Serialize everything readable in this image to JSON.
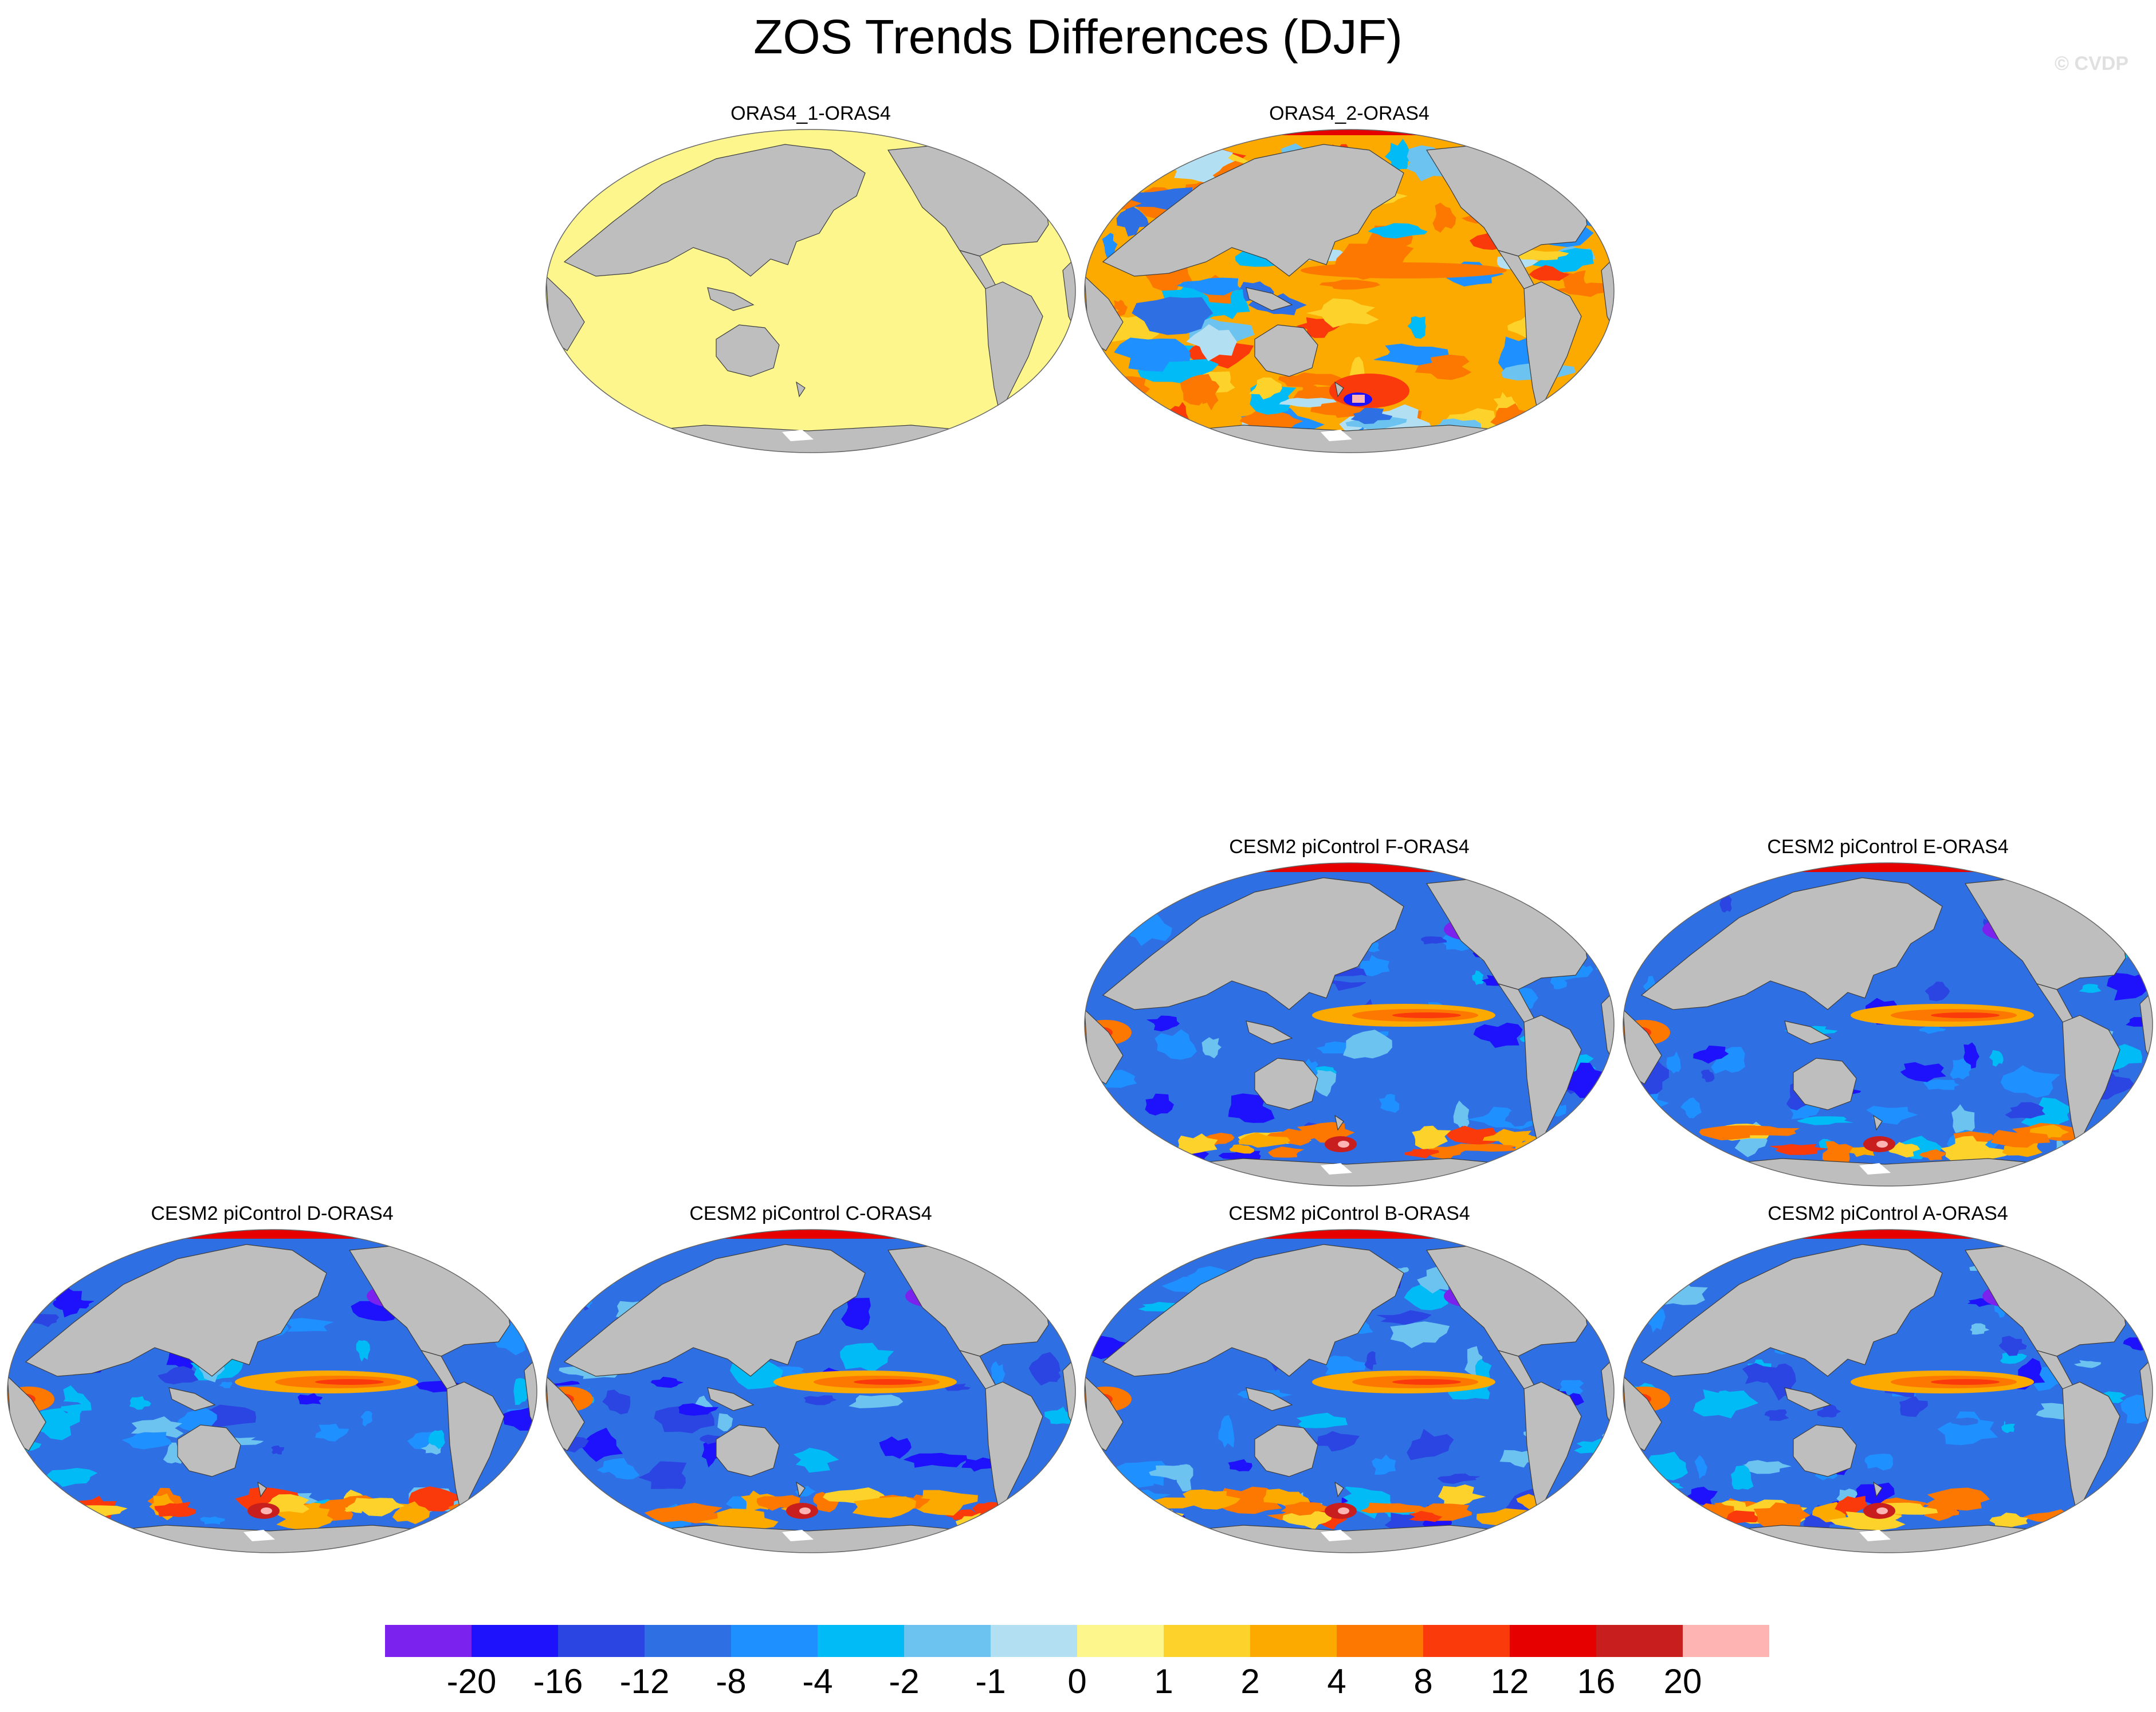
{
  "title": "ZOS Trends Differences (DJF)",
  "credit": "© CVDP",
  "panels": [
    {
      "id": "p-oras1",
      "title": "ORAS4_1-ORAS4",
      "style": "uniform"
    },
    {
      "id": "p-oras2",
      "title": "ORAS4_2-ORAS4",
      "style": "obs"
    },
    {
      "id": "p-f",
      "title": "CESM2 piControl F-ORAS4",
      "style": "model"
    },
    {
      "id": "p-e",
      "title": "CESM2 piControl E-ORAS4",
      "style": "model"
    },
    {
      "id": "p-d",
      "title": "CESM2 piControl D-ORAS4",
      "style": "model"
    },
    {
      "id": "p-c",
      "title": "CESM2 piControl C-ORAS4",
      "style": "model"
    },
    {
      "id": "p-b",
      "title": "CESM2 piControl B-ORAS4",
      "style": "model"
    },
    {
      "id": "p-a",
      "title": "CESM2 piControl A-ORAS4",
      "style": "model"
    }
  ],
  "colorbar": {
    "labels": [
      "-20",
      "-16",
      "-12",
      "-8",
      "-4",
      "-2",
      "-1",
      "0",
      "1",
      "2",
      "4",
      "8",
      "12",
      "16",
      "20"
    ],
    "colors": [
      "#7b22ee",
      "#1d12fb",
      "#2b45e2",
      "#2f6fe4",
      "#1e90ff",
      "#00bbf5",
      "#6dc3f0",
      "#b2dff2",
      "#fdf68d",
      "#fdd22b",
      "#fca900",
      "#fc7800",
      "#fa3a0a",
      "#e60000",
      "#c81e1e",
      "#ffb4b4"
    ]
  },
  "colors": {
    "land": "#bebebe",
    "coast": "#3c3c3c"
  }
}
